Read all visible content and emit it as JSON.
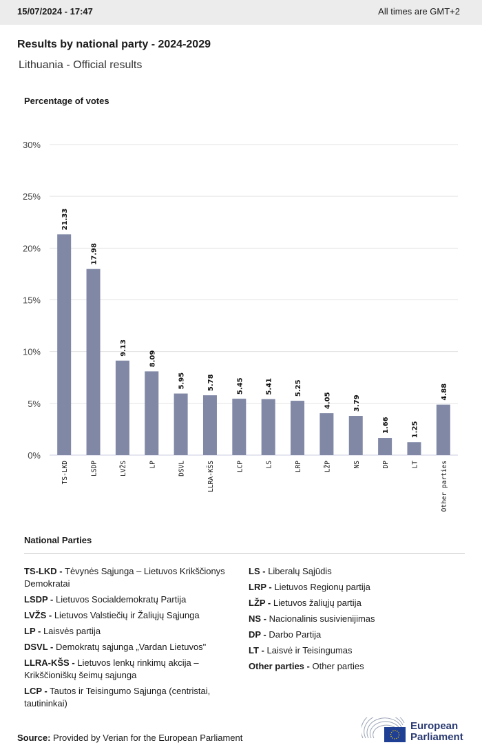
{
  "header": {
    "datetime": "15/07/2024 - 17:47",
    "timezone": "All times are GMT+2"
  },
  "title": "Results by national party - 2024-2029",
  "subtitle": "Lithuania - Official results",
  "colors": {
    "bar": "#8088a6",
    "grid": "#e3e3e3",
    "topbar": "#ececec"
  },
  "chart_data": {
    "type": "bar",
    "ylabel": "Percentage of votes",
    "ylim": [
      0,
      30
    ],
    "yticks": [
      "0%",
      "5%",
      "10%",
      "15%",
      "20%",
      "25%",
      "30%"
    ],
    "grid": true,
    "categories": [
      "TS-LKD",
      "LSDP",
      "LVŽS",
      "LP",
      "DSVL",
      "LLRA-KŠS",
      "LCP",
      "LS",
      "LRP",
      "LŽP",
      "NS",
      "DP",
      "LT",
      "Other parties"
    ],
    "values": [
      21.33,
      17.98,
      9.13,
      8.09,
      5.95,
      5.78,
      5.45,
      5.41,
      5.25,
      4.05,
      3.79,
      1.66,
      1.25,
      4.88
    ],
    "data_labels": [
      "21.33",
      "17.98",
      "9.13",
      "8.09",
      "5.95",
      "5.78",
      "5.45",
      "5.41",
      "5.25",
      "4.05",
      "3.79",
      "1.66",
      "1.25",
      "4.88"
    ]
  },
  "legend": {
    "title": "National Parties",
    "left": [
      {
        "abbr": "TS-LKD -",
        "name": "Tėvynės Sąjunga – Lietuvos Krikščionys Demokratai"
      },
      {
        "abbr": "LSDP -",
        "name": "Lietuvos Socialdemokratų Partija"
      },
      {
        "abbr": "LVŽS -",
        "name": "Lietuvos Valstiečių ir Žaliųjų Sąjunga"
      },
      {
        "abbr": "LP -",
        "name": "Laisvės partija"
      },
      {
        "abbr": "DSVL -",
        "name": "Demokratų sąjunga „Vardan Lietuvos\""
      },
      {
        "abbr": "LLRA-KŠS -",
        "name": "Lietuvos lenkų rinkimų akcija – Krikščioniškų šeimų sąjunga"
      },
      {
        "abbr": "LCP -",
        "name": "Tautos ir Teisingumo Sąjunga (centristai, tautininkai)"
      }
    ],
    "right": [
      {
        "abbr": "LS -",
        "name": "Liberalų Sąjūdis"
      },
      {
        "abbr": "LRP -",
        "name": "Lietuvos Regionų partija"
      },
      {
        "abbr": "LŽP -",
        "name": "Lietuvos žaliųjų partija"
      },
      {
        "abbr": "NS -",
        "name": "Nacionalinis susivienijimas"
      },
      {
        "abbr": "DP -",
        "name": "Darbo Partija"
      },
      {
        "abbr": "LT -",
        "name": "Laisvė ir Teisingumas"
      },
      {
        "abbr": "Other parties -",
        "name": "Other parties"
      }
    ]
  },
  "source": {
    "label": "Source:",
    "text": "Provided by Verian for the European Parliament"
  },
  "logo": {
    "line1": "European",
    "line2": "Parliament"
  }
}
